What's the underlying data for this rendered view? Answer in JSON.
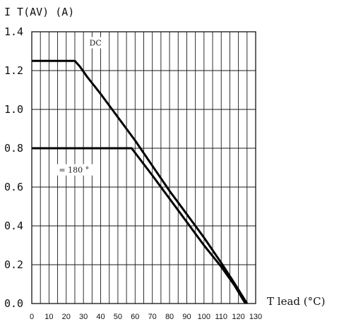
{
  "chart_data": {
    "type": "line",
    "ylabel": "I T(AV) (A)",
    "xlabel": "T lead (°C)",
    "xlim": [
      0,
      130
    ],
    "ylim": [
      0,
      1.4
    ],
    "x_ticks": [
      "0",
      "10",
      "20",
      "30",
      "40",
      "50",
      "60",
      "70",
      "80",
      "90",
      "100",
      "110",
      "120",
      "130"
    ],
    "y_ticks": [
      "0.0",
      "0.2",
      "0.4",
      "0.6",
      "0.8",
      "1.0",
      "1.2",
      "1.4"
    ],
    "grid": true,
    "series": [
      {
        "name": "DC",
        "points": [
          [
            0,
            1.25
          ],
          [
            25,
            1.25
          ],
          [
            28,
            1.22
          ],
          [
            32,
            1.17
          ],
          [
            40,
            1.08
          ],
          [
            50,
            0.96
          ],
          [
            60,
            0.84
          ],
          [
            70,
            0.71
          ],
          [
            80,
            0.58
          ],
          [
            90,
            0.46
          ],
          [
            100,
            0.34
          ],
          [
            110,
            0.21
          ],
          [
            118,
            0.1
          ],
          [
            125,
            0.0
          ]
        ]
      },
      {
        "name": "= 180 °",
        "points": [
          [
            0,
            0.8
          ],
          [
            58,
            0.8
          ],
          [
            70,
            0.66
          ],
          [
            80,
            0.54
          ],
          [
            90,
            0.42
          ],
          [
            100,
            0.3
          ],
          [
            110,
            0.19
          ],
          [
            118,
            0.09
          ],
          [
            124,
            0.0
          ]
        ]
      }
    ]
  }
}
